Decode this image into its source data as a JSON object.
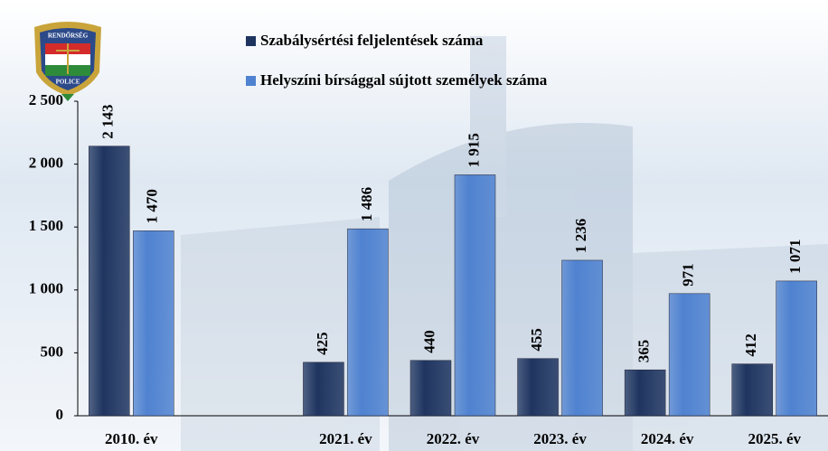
{
  "chart_data": {
    "type": "bar",
    "logo": {
      "top": "RENDŐRSÉG",
      "bottom": "POLICE"
    },
    "categories": [
      "2010. év",
      null,
      "2021. év",
      "2022. év",
      "2023. év",
      "2024. év",
      "2025. év"
    ],
    "series": [
      {
        "name": "Szabálysértési feljelentések száma",
        "color": "#1f3560",
        "values": [
          2143,
          null,
          425,
          440,
          455,
          365,
          412
        ],
        "value_labels": [
          "2 143",
          null,
          "425",
          "440",
          "455",
          "365",
          "412"
        ]
      },
      {
        "name": "Helyszíni bírsággal sújtott személyek száma",
        "color": "#4f82d0",
        "values": [
          1470,
          null,
          1486,
          1915,
          1236,
          971,
          1071
        ],
        "value_labels": [
          "1 470",
          null,
          "1 486",
          "1 915",
          "1 236",
          "971",
          "1 071"
        ]
      }
    ],
    "ylim": [
      0,
      2500
    ],
    "yticks": [
      0,
      500,
      {
        "value": 1000,
        "label": "1 000"
      },
      {
        "value": 1500,
        "label": "1 500"
      },
      {
        "value": 2000,
        "label": "2 000"
      },
      {
        "value": 2500,
        "label": "2 500"
      }
    ],
    "legend": "top"
  }
}
